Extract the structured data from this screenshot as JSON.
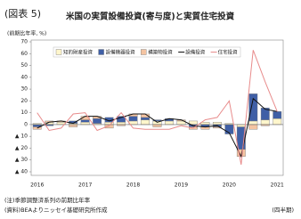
{
  "chart_data": {
    "type": "bar",
    "figure_label": "(図表 5)",
    "title": "米国の実質設備投資(寄与度)と実質住宅投資",
    "ylabel": "(前期比年率, %)",
    "x_unit": "(四半期)",
    "notes": [
      "(注)季節調整済系列の前期比年率",
      "(資料)BEAよりニッセイ基礎研究所作成"
    ],
    "categories": [
      "2016",
      null,
      null,
      null,
      "2017",
      null,
      null,
      null,
      "2018",
      null,
      null,
      null,
      "2019",
      null,
      null,
      null,
      "2020",
      null,
      null,
      null,
      "2021"
    ],
    "ylim": [
      -40,
      70
    ],
    "yticks": [
      {
        "value": -40,
        "label": "▲ 40"
      },
      {
        "value": -30,
        "label": "▲ 30"
      },
      {
        "value": -20,
        "label": "▲ 20"
      },
      {
        "value": -10,
        "label": "▲ 10"
      },
      0,
      10,
      20,
      30,
      40,
      50,
      60,
      70
    ],
    "grid": false,
    "series": [
      {
        "name": "知的財産投資",
        "type": "bar",
        "color": "#fff6cc",
        "values": [
          1,
          2,
          2,
          1,
          2,
          1,
          2,
          2,
          3,
          4,
          3,
          3,
          3,
          3,
          2,
          2,
          1,
          -2,
          3,
          4,
          5
        ]
      },
      {
        "name": "設備機器投資",
        "type": "bar",
        "color": "#3f5fa6",
        "values": [
          -2,
          -1,
          0,
          2,
          2,
          4,
          4,
          5,
          4,
          2,
          1,
          2,
          0,
          -2,
          -2,
          -2,
          -8,
          -19,
          23,
          10,
          6
        ]
      },
      {
        "name": "構築物投資",
        "type": "bar",
        "color": "#f4c4a2",
        "values": [
          -2,
          1,
          1,
          -2,
          3,
          2,
          -3,
          -1,
          2,
          3,
          -2,
          0,
          1,
          -2,
          -2,
          -1,
          0,
          -6,
          -4,
          -1,
          0
        ]
      },
      {
        "name": "設備投資",
        "type": "line",
        "color": "#111111",
        "values": [
          -3,
          2,
          3,
          1,
          7,
          7,
          3,
          6,
          9,
          9,
          2,
          5,
          4,
          -1,
          -2,
          -1,
          -7,
          -27,
          22,
          13,
          11
        ]
      },
      {
        "name": "住宅投資",
        "type": "line",
        "color": "#e88c8c",
        "values": [
          10,
          -5,
          -3,
          9,
          10,
          -5,
          -1,
          10,
          -3,
          -4,
          -4,
          -4,
          -1,
          -3,
          4,
          6,
          20,
          -34,
          63,
          36,
          11
        ]
      }
    ]
  }
}
